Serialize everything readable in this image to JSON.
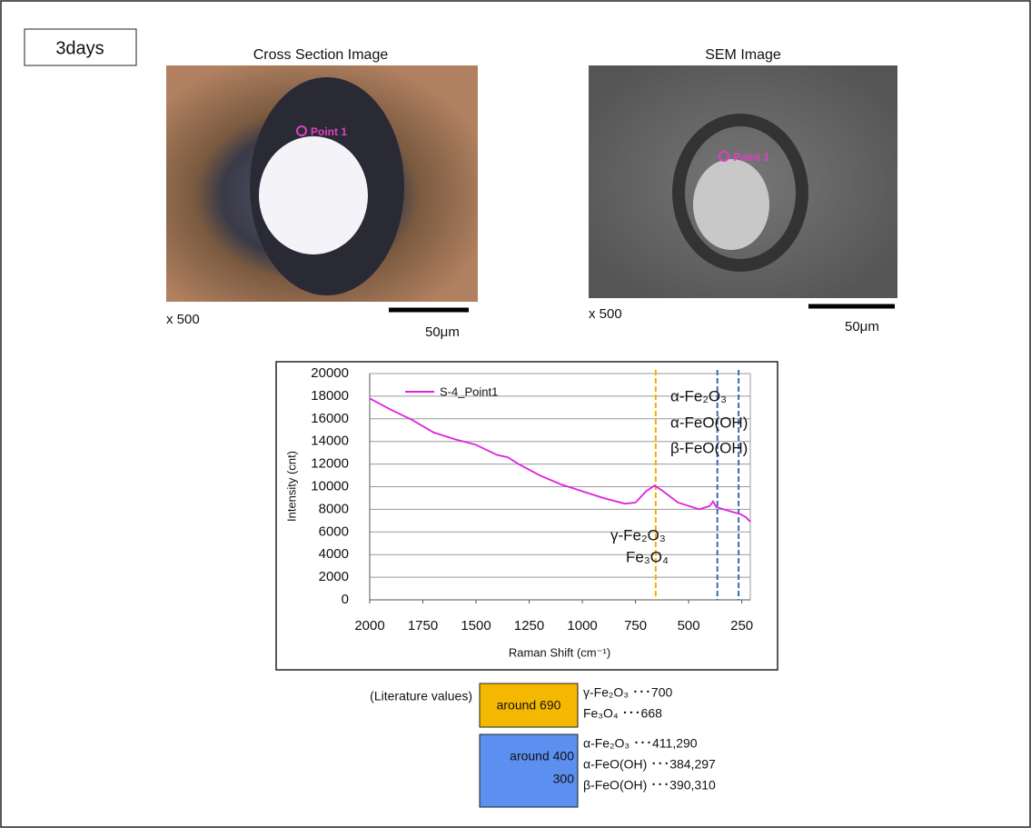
{
  "label": "3days",
  "images": [
    {
      "title": "Cross Section Image",
      "point": "Point 1",
      "magnification": "x 500",
      "scale": "50μm"
    },
    {
      "title": "SEM Image",
      "point": "Point 1",
      "magnification": "x 500",
      "scale": "50μm"
    }
  ],
  "chart_data": {
    "type": "line",
    "x_label": "Raman Shift (cm⁻¹)",
    "y_label": "Intensity (cnt)",
    "x": [
      2000,
      1900,
      1800,
      1700,
      1600,
      1500,
      1400,
      1350,
      1300,
      1200,
      1100,
      1000,
      900,
      800,
      750,
      700,
      660,
      620,
      550,
      450,
      400,
      385,
      370,
      300,
      260,
      230,
      210
    ],
    "series": [
      {
        "name": "S-4_Point1",
        "color": "#e020e0",
        "values": [
          17800,
          16800,
          15900,
          14800,
          14200,
          13700,
          12800,
          12600,
          12000,
          11000,
          10200,
          9600,
          9000,
          8500,
          8600,
          9600,
          10100,
          9600,
          8600,
          8000,
          8300,
          8700,
          8200,
          7800,
          7600,
          7300,
          6900
        ]
      }
    ],
    "xlim": [
      2000,
      210
    ],
    "xticks": [
      2000,
      1750,
      1500,
      1250,
      1000,
      750,
      500,
      250
    ],
    "ylim": [
      0,
      20000
    ],
    "yticks": [
      0,
      2000,
      4000,
      6000,
      8000,
      10000,
      12000,
      14000,
      16000,
      18000,
      20000
    ],
    "grid": true,
    "legend": "top-left",
    "reference_lines": [
      {
        "x": 655,
        "color": "#f0b000"
      },
      {
        "x": 365,
        "color": "#3a6ab8"
      },
      {
        "x": 265,
        "color": "#3a6ab8"
      }
    ],
    "annotations": [
      "α-Fe₂O₃",
      "α-FeO(OH)",
      "β-FeO(OH)",
      "γ-Fe₂O₃",
      "Fe₃O₄"
    ]
  },
  "literature": {
    "heading": "(Literature values)",
    "groups": [
      {
        "box": [
          "around 690"
        ],
        "color": "#f5b800",
        "lines": [
          "γ-Fe₂O₃ ･･･700",
          "Fe₃O₄ ･･･668"
        ]
      },
      {
        "box": [
          "around 400",
          "300"
        ],
        "color": "#5b8ff0",
        "lines": [
          "α-Fe₂O₃ ･･･411,290",
          "α-FeO(OH) ･･･384,297",
          "β-FeO(OH) ･･･390,310"
        ]
      }
    ]
  }
}
